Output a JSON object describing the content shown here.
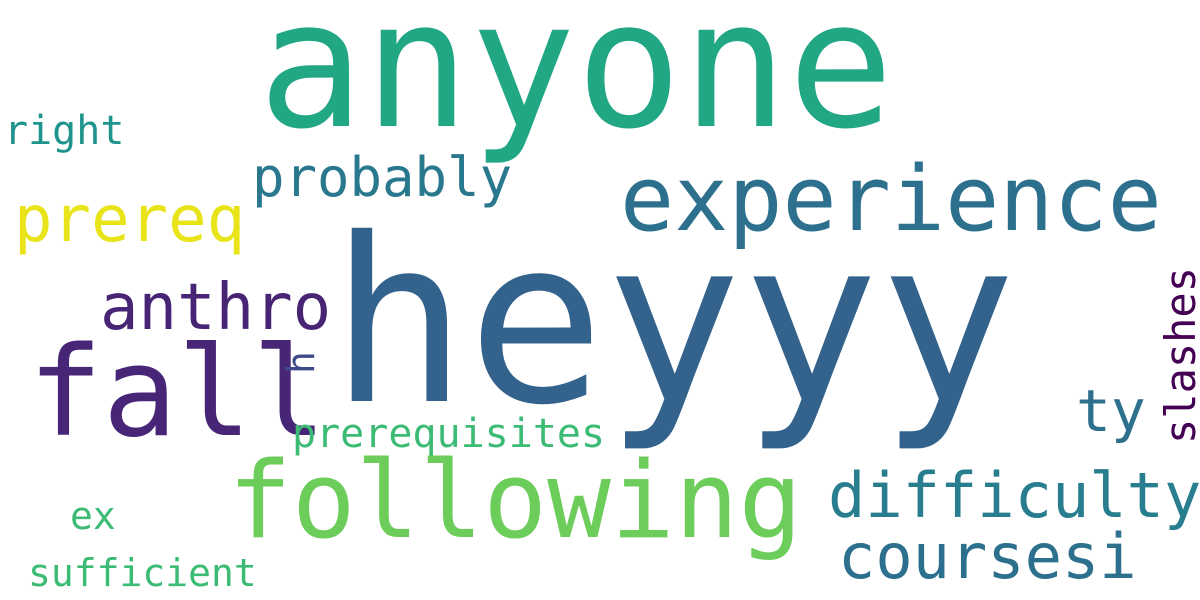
{
  "words": {
    "anyone": {
      "text": "anyone",
      "color": "#22A784"
    },
    "heyyy": {
      "text": "heyyy",
      "color": "#33638D"
    },
    "experience": {
      "text": "experience",
      "color": "#2D708E"
    },
    "fall": {
      "text": "fall",
      "color": "#482677"
    },
    "following": {
      "text": "following",
      "color": "#6CCD5A"
    },
    "difficulty": {
      "text": "difficulty",
      "color": "#287D8E"
    },
    "coursesi": {
      "text": "coursesi",
      "color": "#2D708E"
    },
    "probably": {
      "text": "probably",
      "color": "#2A788E"
    },
    "prereq": {
      "text": "prereq",
      "color": "#E8E419"
    },
    "anthro": {
      "text": "anthro",
      "color": "#482475"
    },
    "prerequisites": {
      "text": "prerequisites",
      "color": "#3CBB75"
    },
    "ty": {
      "text": "ty",
      "color": "#2D708E"
    },
    "slashes": {
      "text": "slashes",
      "color": "#440154"
    },
    "right": {
      "text": "right",
      "color": "#1F948C"
    },
    "h": {
      "text": "h",
      "color": "#3E4A89"
    },
    "ex": {
      "text": "ex",
      "color": "#3CBB75"
    },
    "sufficient": {
      "text": "sufficient",
      "color": "#3CBB75"
    }
  }
}
